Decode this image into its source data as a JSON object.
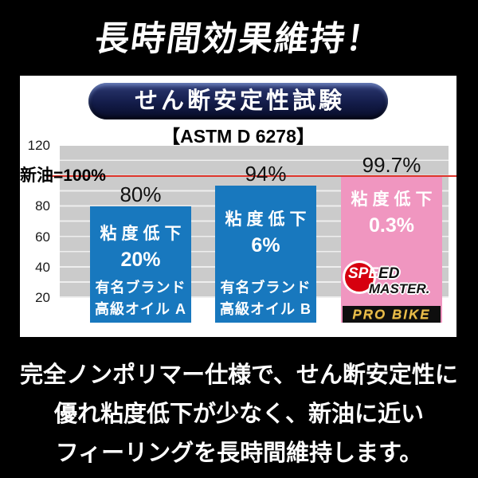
{
  "title": "長時間効果維持！",
  "panel": {
    "badge_label": "せん断安定性試験",
    "standard_label": "【ASTM D 6278】"
  },
  "chart_data": {
    "type": "bar",
    "title": "せん断安定性試験",
    "subtitle": "【ASTM D 6278】",
    "ylim": [
      20,
      120
    ],
    "grid": "horizontal every 10, light lines on gray plot",
    "y_tick_values": [
      120,
      80,
      60,
      40,
      20
    ],
    "y_tick_labels": [
      "120",
      "80",
      "60",
      "40",
      "20"
    ],
    "baseline": {
      "label": "新油=100%",
      "value": 100,
      "color": "#de352b"
    },
    "categories": [
      "有名ブランド 高級オイル A",
      "有名ブランド 高級オイル B",
      "SPEED MASTER PRO BIKE"
    ],
    "values": [
      80,
      94,
      99.7
    ],
    "bars": [
      {
        "value": 80,
        "value_label": "80%",
        "note_line1": "粘度低下",
        "note_line2": "20%",
        "brand_line1": "有名ブランド",
        "brand_line2": "高級オイル A",
        "color": "#1878be"
      },
      {
        "value": 94,
        "value_label": "94%",
        "note_line1": "粘度低下",
        "note_line2": "6%",
        "brand_line1": "有名ブランド",
        "brand_line2": "高級オイル B",
        "color": "#1878be"
      },
      {
        "value": 99.7,
        "value_label": "99.7%",
        "note_line1": "粘度低下",
        "note_line2": "0.3%",
        "logo": {
          "speed_white": "SPE",
          "speed_black": "ED",
          "master": "MASTER.",
          "band": "PRO BIKE",
          "circle_color": "#d6000f"
        },
        "color": "#f096c0"
      }
    ]
  },
  "footer": {
    "lines": [
      "完全ノンポリマー仕様で、せん断安定性に",
      "優れ粘度低下が少なく、新油に近い",
      "フィーリングを長時間維持します。"
    ]
  }
}
